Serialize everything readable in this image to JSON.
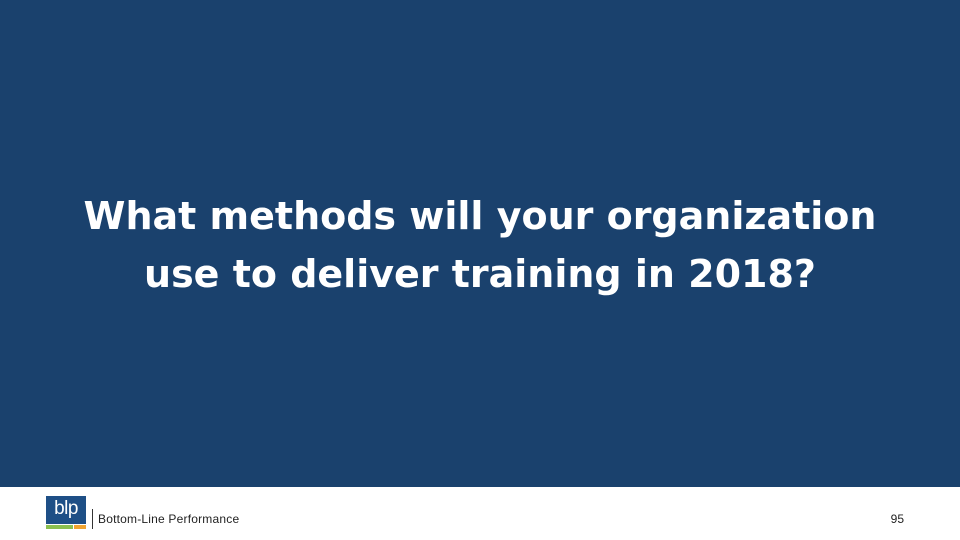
{
  "slide": {
    "title_lines": [
      "What methods will your organization",
      "use to deliver training in 2018?"
    ],
    "background_color": "#1a416d",
    "title_color": "#ffffff"
  },
  "footer": {
    "logo_text": "blp",
    "company_name": "Bottom-Line  Performance",
    "page_number": "95",
    "logo_colors": {
      "box": "#1e4f86",
      "green_bar": "#8bbf4f",
      "orange_bar": "#f0a431"
    }
  }
}
